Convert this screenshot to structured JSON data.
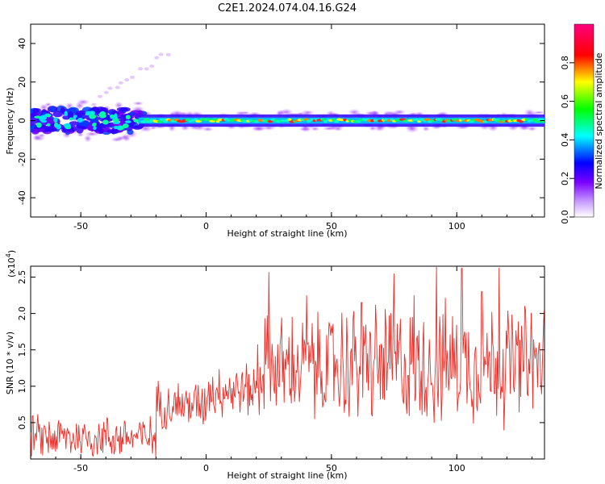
{
  "title": "C2E1.2024.074.04.16.G24",
  "colors": {
    "snr_line": "#e8302a",
    "background": "#ffffff",
    "axis": "#000000"
  },
  "chart_data": [
    {
      "type": "heatmap",
      "name": "spectrogram",
      "xlabel": "Height of straight line (km)",
      "ylabel": "Frequency (Hz)",
      "xlim": [
        -70,
        135
      ],
      "ylim": [
        -50,
        50
      ],
      "x_ticks": [
        "-50",
        "0",
        "50",
        "100"
      ],
      "x_tick_values": [
        -50,
        0,
        50,
        100
      ],
      "y_ticks": [
        "40",
        "20",
        "0",
        "-20",
        "-40"
      ],
      "y_tick_values": [
        40,
        20,
        0,
        -20,
        -40
      ],
      "colorbar": {
        "label": "Normalized spectral amplitude",
        "range": [
          0,
          1
        ],
        "ticks": [
          "0.0",
          "0.2",
          "0.4",
          "0.6",
          "0.8"
        ],
        "tick_values": [
          0.0,
          0.2,
          0.4,
          0.6,
          0.8
        ],
        "colormap": [
          "#ffffff",
          "#8a00ff",
          "#0000ff",
          "#00ffff",
          "#00ff00",
          "#ffff00",
          "#ff0000",
          "#ff0080"
        ]
      },
      "description_points": {
        "band_center_hz": 0,
        "band_half_width_hz": 3,
        "noisy_region_km": [
          -70,
          -25
        ],
        "noisy_half_width_hz": 10
      }
    },
    {
      "type": "line",
      "name": "snr",
      "xlabel": "Height of straight line (km)",
      "ylabel": "SNR (10 * v/v)",
      "y_multiplier_label": "(x10",
      "y_multiplier_exp": "4",
      "xlim": [
        -70,
        135
      ],
      "ylim": [
        0,
        2.65
      ],
      "x_ticks": [
        "-50",
        "0",
        "50",
        "100"
      ],
      "x_tick_values": [
        -50,
        0,
        50,
        100
      ],
      "y_ticks": [
        "2.5",
        "2.0",
        "1.5",
        "1.0",
        "0.5"
      ],
      "y_tick_values": [
        2.5,
        2.0,
        1.5,
        1.0,
        0.5
      ],
      "segments": [
        {
          "x_range": [
            -70,
            -20
          ],
          "mean": 0.3,
          "amp": 0.45
        },
        {
          "x_range": [
            -20,
            0
          ],
          "mean": 0.75,
          "amp": 0.5
        },
        {
          "x_range": [
            0,
            20
          ],
          "mean": 0.95,
          "amp": 0.55
        },
        {
          "x_range": [
            20,
            50
          ],
          "mean": 1.25,
          "amp": 1.1
        },
        {
          "x_range": [
            50,
            135
          ],
          "mean": 1.3,
          "amp": 1.25
        }
      ],
      "peaks": [
        {
          "x": 25,
          "y": 2.57
        },
        {
          "x": 75,
          "y": 2.55
        },
        {
          "x": 83,
          "y": 2.25
        },
        {
          "x": 92,
          "y": 2.65
        },
        {
          "x": 102,
          "y": 2.62
        },
        {
          "x": 117,
          "y": 2.63
        },
        {
          "x": 110,
          "y": 2.3
        },
        {
          "x": 40,
          "y": 2.25
        },
        {
          "x": 62,
          "y": 2.15
        }
      ]
    }
  ]
}
